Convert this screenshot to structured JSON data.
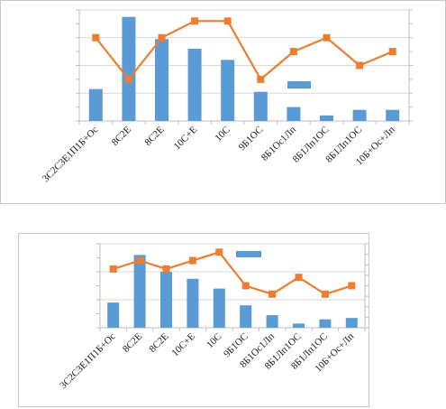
{
  "chart_data": [
    {
      "type": "bar+line",
      "categories": [
        "3С2С3Е1П1Б+Ос",
        "8С2Е",
        "8С2Е",
        "10С+Е",
        "10С",
        "9Б1ОС",
        "8Б1Ос1Лп",
        "8Б1Лп1ОС",
        "8Б1Лп1ОС",
        "10Б+Ос+Лп"
      ],
      "series": [
        {
          "kind": "bar",
          "values": [
            2.3,
            7.5,
            5.9,
            5.2,
            4.4,
            2.1,
            1.0,
            0.4,
            0.8,
            0.8
          ],
          "color": "#5b9bd5"
        },
        {
          "kind": "line",
          "values": [
            6.0,
            3.0,
            6.0,
            7.2,
            7.2,
            3.0,
            5.0,
            6.0,
            4.0,
            5.0
          ],
          "color": "#ed7d31"
        }
      ],
      "y_left": [
        0,
        8
      ],
      "y_right": [
        0,
        8
      ],
      "grid": true,
      "legend": "inside-right"
    },
    {
      "type": "bar+line",
      "categories": [
        "3С2С3Е1П1Б+Ос",
        "8С2Е",
        "8С2Е",
        "10С+Е",
        "10С",
        "9Б1ОС",
        "8Б1Ос1Лп",
        "8Б1Лп1ОС",
        "8Б1Лп1ОС",
        "10Б+Ос+Лп"
      ],
      "series": [
        {
          "kind": "bar",
          "values": [
            1.8,
            5.2,
            4.0,
            3.5,
            2.8,
            1.6,
            0.9,
            0.3,
            0.6,
            0.7
          ],
          "color": "#5b9bd5"
        },
        {
          "kind": "line",
          "values": [
            5.6,
            6.4,
            5.6,
            6.4,
            7.2,
            4.0,
            3.2,
            4.8,
            3.2,
            4.0
          ],
          "color": "#ed7d31"
        }
      ],
      "y_left": [
        0,
        6
      ],
      "y_right": [
        0,
        8
      ],
      "grid": true,
      "legend": "top-right"
    }
  ]
}
